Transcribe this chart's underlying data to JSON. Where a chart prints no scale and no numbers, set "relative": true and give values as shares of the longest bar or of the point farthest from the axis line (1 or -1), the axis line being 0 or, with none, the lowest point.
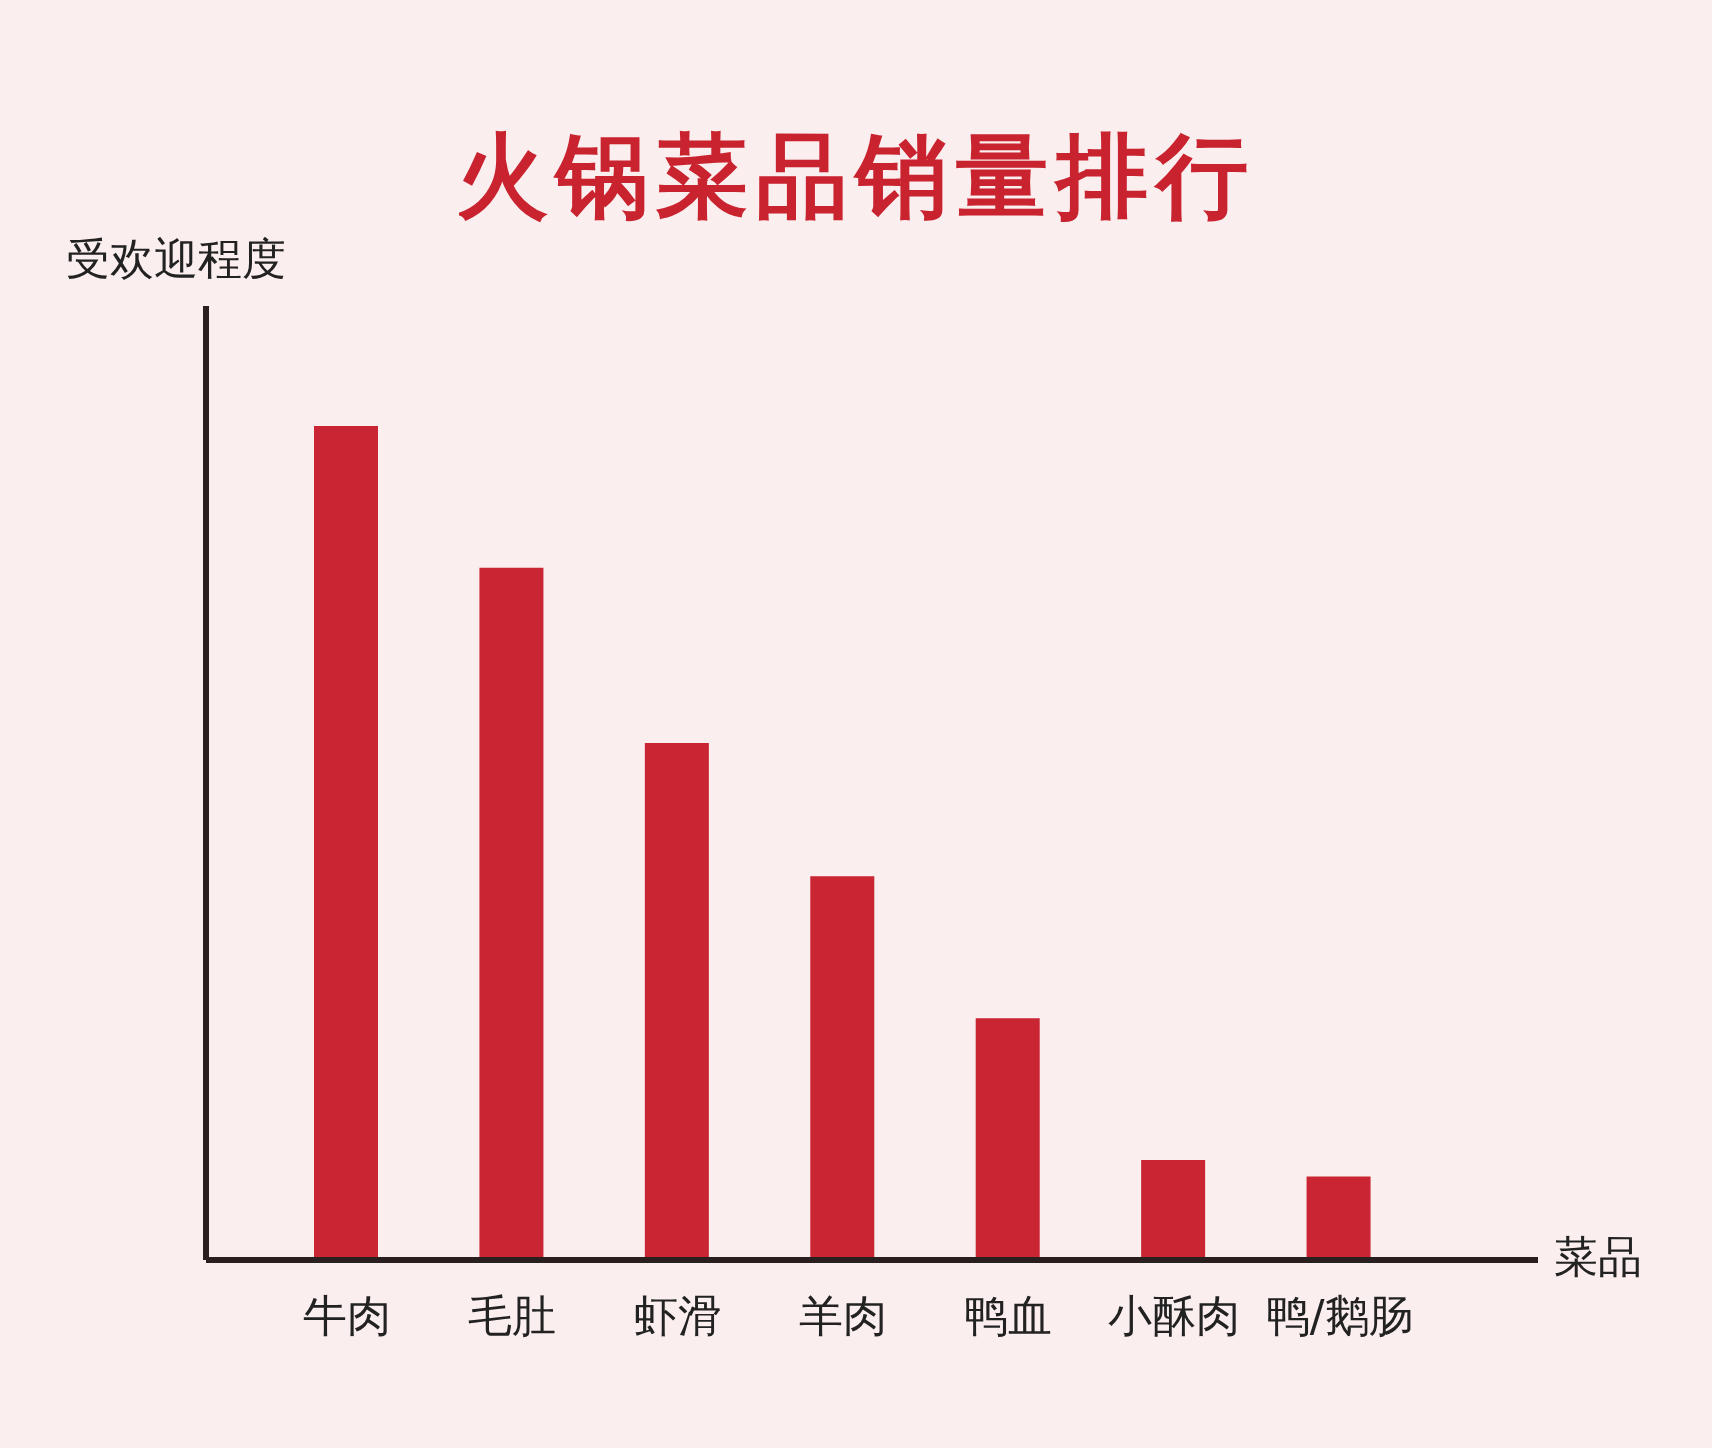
{
  "chart_data": {
    "type": "bar",
    "title": "火锅菜品销量排行",
    "xlabel": "菜品",
    "ylabel": "受欢迎程度",
    "categories": [
      "牛肉",
      "毛肚",
      "虾滑",
      "羊肉",
      "鸭血",
      "小酥肉",
      "鸭/鹅肠"
    ],
    "values": [
      1,
      0.83,
      0.62,
      0.46,
      0.29,
      0.12,
      0.1
    ],
    "color": "#c92532",
    "relative": true
  }
}
